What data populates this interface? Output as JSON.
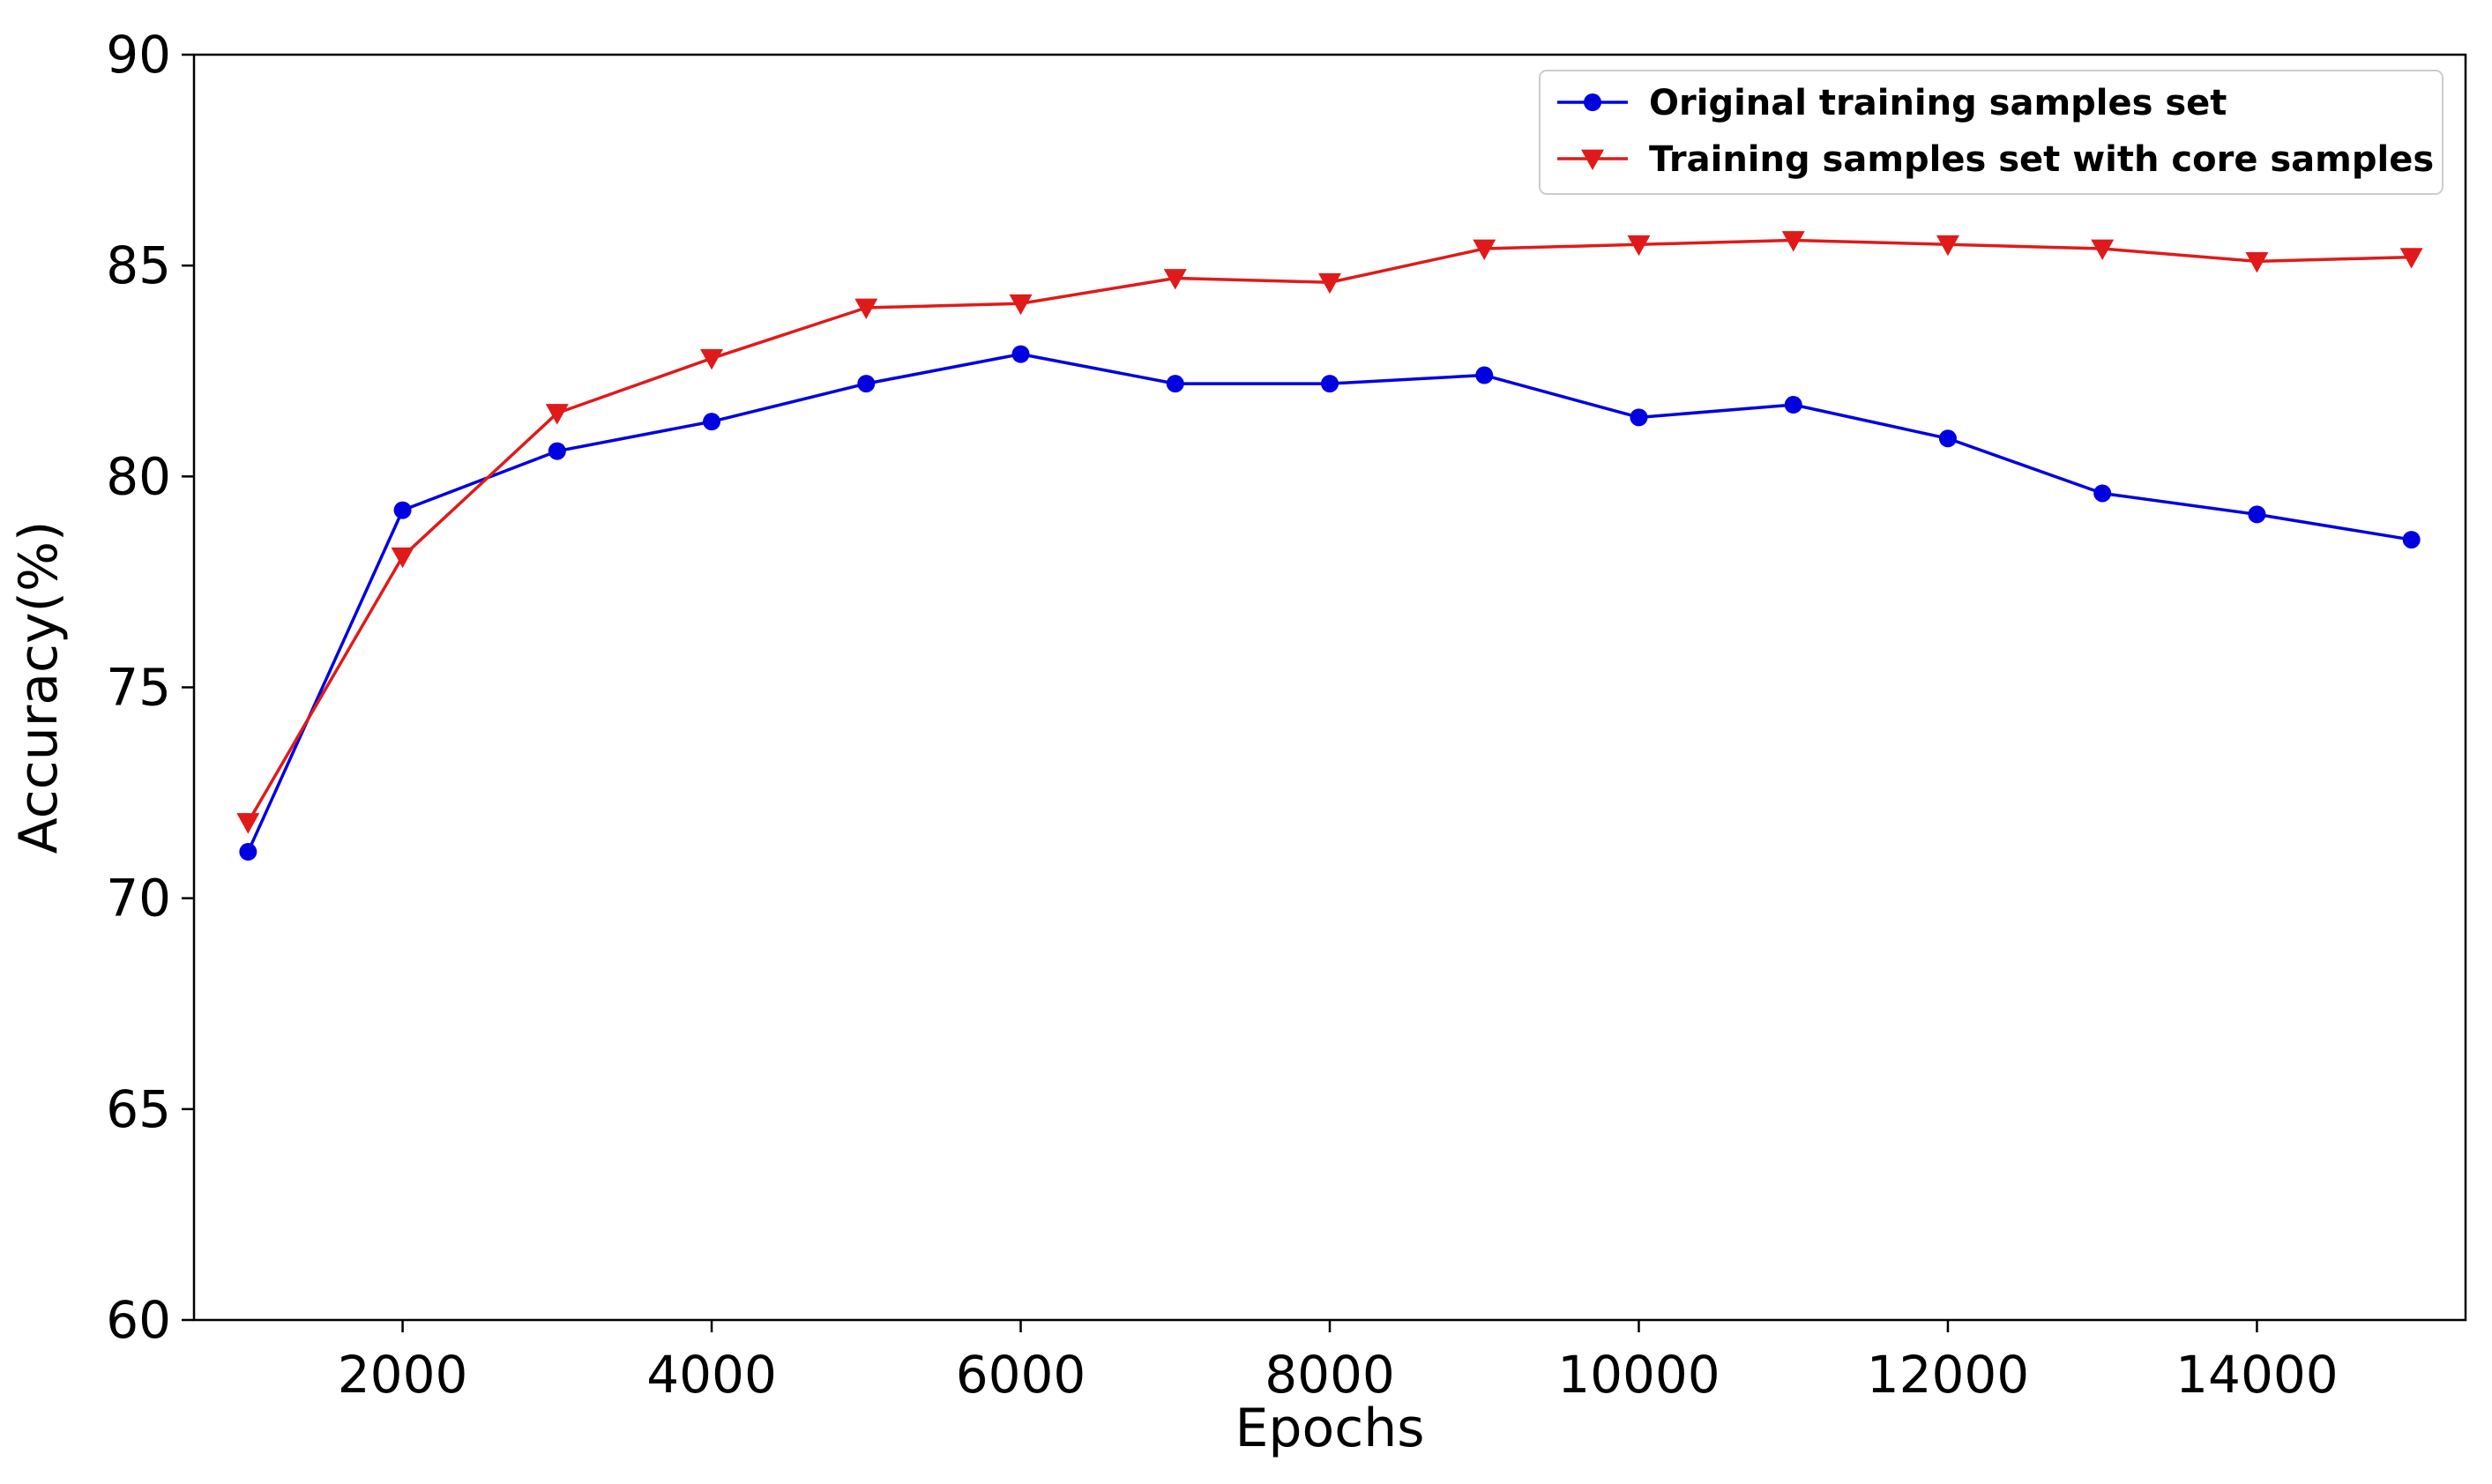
{
  "chart_data": {
    "type": "line",
    "title": "",
    "xlabel": "Epochs",
    "ylabel": "Accuracy(%)",
    "xlim": [
      650,
      15350
    ],
    "ylim": [
      60,
      90
    ],
    "xticks": [
      2000,
      4000,
      6000,
      8000,
      10000,
      12000,
      14000
    ],
    "yticks": [
      60,
      65,
      70,
      75,
      80,
      85,
      90
    ],
    "grid": false,
    "legend_position": "top-right",
    "x": [
      1000,
      2000,
      3000,
      4000,
      5000,
      6000,
      7000,
      8000,
      9000,
      10000,
      11000,
      12000,
      13000,
      14000,
      15000
    ],
    "series": [
      {
        "name": "Original training samples set",
        "color": "#0000e0",
        "marker": "circle",
        "values": [
          71.1,
          79.2,
          80.6,
          81.3,
          82.2,
          82.9,
          82.2,
          82.2,
          82.4,
          81.4,
          81.7,
          80.9,
          79.6,
          79.1,
          78.5
        ]
      },
      {
        "name": "Training samples set with core samples",
        "color": "#e01a1a",
        "marker": "triangle-down",
        "values": [
          71.8,
          78.1,
          81.5,
          82.8,
          84.0,
          84.1,
          84.7,
          84.6,
          85.4,
          85.5,
          85.6,
          85.5,
          85.4,
          85.1,
          85.2
        ]
      }
    ]
  }
}
